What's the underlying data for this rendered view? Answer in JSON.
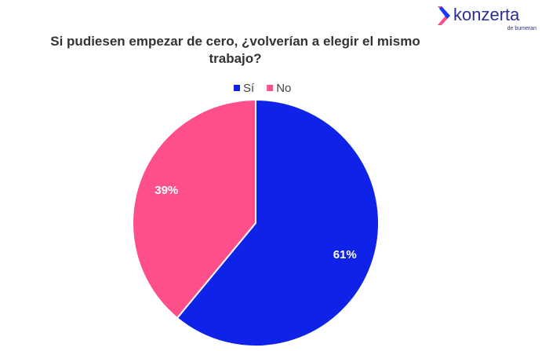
{
  "logo": {
    "name": "konzerta",
    "tagline": "de bumeran"
  },
  "chart_data": {
    "type": "pie",
    "title": "Si pudiesen empezar de cero, ¿volverían a elegir el mismo trabajo?",
    "categories": [
      "Sí",
      "No"
    ],
    "values": [
      61,
      39
    ],
    "value_labels": [
      "61%",
      "39%"
    ],
    "colors": [
      "#0f23e8",
      "#ff4f8b"
    ],
    "legend": "top"
  }
}
